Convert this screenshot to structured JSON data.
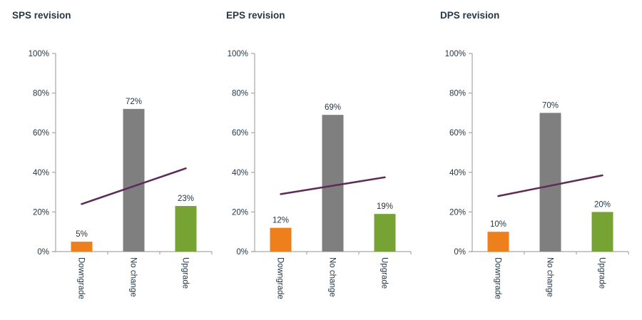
{
  "figure": {
    "background": "#ffffff"
  },
  "colors": {
    "text": "#243746",
    "axis": "#a6a6a6",
    "downgrade_bar": "#ee7f1d",
    "no_change_bar": "#7f7f7f",
    "upgrade_bar": "#76a333",
    "trend_line": "#5e2a56"
  },
  "y_axis": {
    "min": 0,
    "max": 100,
    "ticks": [
      {
        "value": 0,
        "label": "0%"
      },
      {
        "value": 20,
        "label": "20%"
      },
      {
        "value": 40,
        "label": "40%"
      },
      {
        "value": 60,
        "label": "60%"
      },
      {
        "value": 80,
        "label": "80%"
      },
      {
        "value": 100,
        "label": "100%"
      }
    ]
  },
  "chart_data": [
    {
      "type": "bar",
      "title": "SPS revision",
      "categories": [
        "Downgrade",
        "No change",
        "Upgrade"
      ],
      "values": [
        5,
        72,
        23
      ],
      "bar_labels": [
        "5%",
        "72%",
        "23%"
      ],
      "bar_colors": [
        "#ee7f1d",
        "#7f7f7f",
        "#76a333"
      ],
      "trend_line": {
        "start_value": 24,
        "end_value": 42
      },
      "ylim": [
        0,
        100
      ],
      "grid": false,
      "legend": "none"
    },
    {
      "type": "bar",
      "title": "EPS revision",
      "categories": [
        "Downgrade",
        "No change",
        "Upgrade"
      ],
      "values": [
        12,
        69,
        19
      ],
      "bar_labels": [
        "12%",
        "69%",
        "19%"
      ],
      "bar_colors": [
        "#ee7f1d",
        "#7f7f7f",
        "#76a333"
      ],
      "trend_line": {
        "start_value": 29,
        "end_value": 37.5
      },
      "ylim": [
        0,
        100
      ],
      "grid": false,
      "legend": "none"
    },
    {
      "type": "bar",
      "title": "DPS revision",
      "categories": [
        "Downgrade",
        "No change",
        "Upgrade"
      ],
      "values": [
        10,
        70,
        20
      ],
      "bar_labels": [
        "10%",
        "70%",
        "20%"
      ],
      "bar_colors": [
        "#ee7f1d",
        "#7f7f7f",
        "#76a333"
      ],
      "trend_line": {
        "start_value": 28,
        "end_value": 38.5
      },
      "ylim": [
        0,
        100
      ],
      "grid": false,
      "legend": "none"
    }
  ]
}
